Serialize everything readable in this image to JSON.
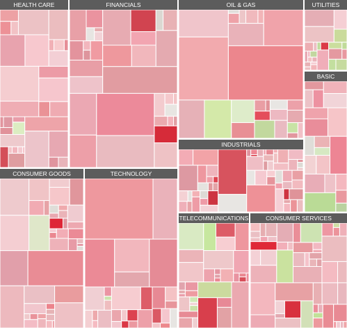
{
  "sectors": [
    "HEALTH CARE",
    "FINANCIALS",
    "OIL & GAS",
    "UTILITIES",
    "BASIC",
    "INDUSTRIALS",
    "CONSUMER GOODS",
    "TECHNOLOGY",
    "TELECOMMUNICATIONS",
    "CONSUMER SERVICES"
  ]
}
